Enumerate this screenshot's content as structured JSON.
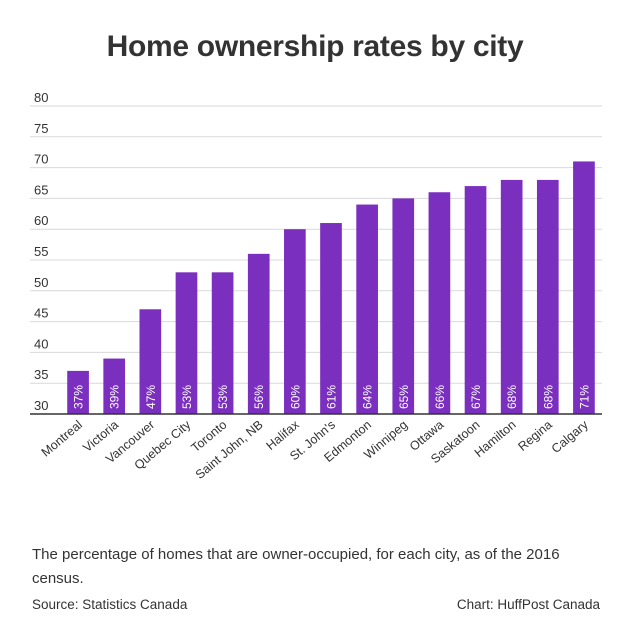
{
  "header": {
    "title": "Home ownership rates by city"
  },
  "footer": {
    "caption": "The percentage of homes that are owner-occupied, for each city, as of the 2016 census.",
    "source": "Source: Statistics Canada",
    "credit": "Chart: HuffPost Canada"
  },
  "colors": {
    "bar": "#7b2fbf",
    "grid": "#d9d9d9",
    "axis": "#333333",
    "label_inside": "#ffffff"
  },
  "chart_data": {
    "type": "bar",
    "title": "Home ownership rates by city",
    "xlabel": "",
    "ylabel": "",
    "categories": [
      "Montreal",
      "Victoria",
      "Vancouver",
      "Quebec City",
      "Toronto",
      "Saint John, NB",
      "Halifax",
      "St. John's",
      "Edmonton",
      "Winnipeg",
      "Ottawa",
      "Saskatoon",
      "Hamilton",
      "Regina",
      "Calgary"
    ],
    "values": [
      37,
      39,
      47,
      53,
      53,
      56,
      60,
      61,
      64,
      65,
      66,
      67,
      68,
      68,
      71
    ],
    "data_labels": [
      "37%",
      "39%",
      "47%",
      "53%",
      "53%",
      "56%",
      "60%",
      "61%",
      "64%",
      "65%",
      "66%",
      "67%",
      "68%",
      "68%",
      "71%"
    ],
    "y_ticks": [
      30,
      35,
      40,
      45,
      50,
      55,
      60,
      65,
      70,
      75,
      80
    ],
    "ylim": [
      30,
      80
    ],
    "grid": true,
    "legend": "none"
  }
}
